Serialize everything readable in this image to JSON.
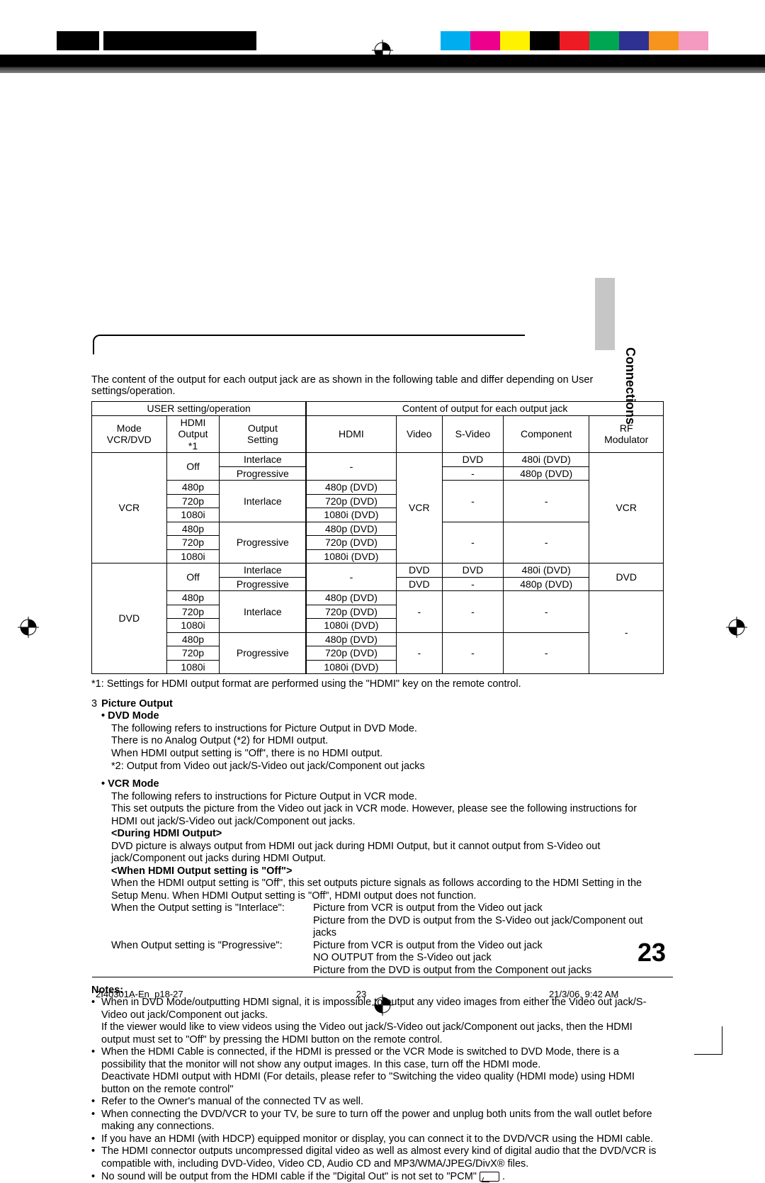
{
  "page": {
    "sideLabel": "Connections",
    "pageNumber": "23",
    "footerFile": "2I40301A-En_p18-27",
    "footerPage": "23",
    "footerDate": "21/3/06, 9:42 AM"
  },
  "intro": "The content of the output for each output jack are as shown in the following table and differ depending on User settings/operation.",
  "regColors": [
    "#00aeef",
    "#ec008c",
    "#fff200",
    "#000000",
    "#ed1c24",
    "#00a651",
    "#2e3192",
    "#f7941d",
    "#f49ac1"
  ],
  "table": {
    "headGroupLeft": "USER setting/operation",
    "headGroupRight": "Content of output for each output jack",
    "headers": {
      "mode": "Mode\nVCR/DVD",
      "hdmiOutput": "HDMI\nOutput\n*1",
      "outputSetting": "Output\nSetting",
      "hdmi": "HDMI",
      "video": "Video",
      "svideo": "S-Video",
      "component": "Component",
      "rf": "RF\nModulator"
    },
    "rows": [
      {
        "mode": "VCR",
        "hdmiOutput": "Off",
        "outputSetting": "Interlace",
        "hdmi": "-",
        "video": "VCR",
        "svideo": "DVD",
        "component": "480i (DVD)",
        "rf": "VCR"
      },
      {
        "mode": "",
        "hdmiOutput": "",
        "outputSetting": "Progressive",
        "hdmi": "",
        "video": "",
        "svideo": "-",
        "component": "480p (DVD)",
        "rf": ""
      },
      {
        "mode": "",
        "hdmiOutput": "480p",
        "outputSetting": "Interlace",
        "hdmi": "480p (DVD)",
        "video": "",
        "svideo": "-",
        "component": "-",
        "rf": ""
      },
      {
        "mode": "",
        "hdmiOutput": "720p",
        "outputSetting": "",
        "hdmi": "720p (DVD)",
        "video": "",
        "svideo": "",
        "component": "",
        "rf": ""
      },
      {
        "mode": "",
        "hdmiOutput": "1080i",
        "outputSetting": "",
        "hdmi": "1080i (DVD)",
        "video": "",
        "svideo": "",
        "component": "",
        "rf": ""
      },
      {
        "mode": "",
        "hdmiOutput": "480p",
        "outputSetting": "Progressive",
        "hdmi": "480p (DVD)",
        "video": "",
        "svideo": "-",
        "component": "-",
        "rf": ""
      },
      {
        "mode": "",
        "hdmiOutput": "720p",
        "outputSetting": "",
        "hdmi": "720p (DVD)",
        "video": "",
        "svideo": "",
        "component": "",
        "rf": ""
      },
      {
        "mode": "",
        "hdmiOutput": "1080i",
        "outputSetting": "",
        "hdmi": "1080i (DVD)",
        "video": "",
        "svideo": "",
        "component": "",
        "rf": ""
      },
      {
        "mode": "DVD",
        "hdmiOutput": "Off",
        "outputSetting": "Interlace",
        "hdmi": "-",
        "video": "DVD",
        "svideo": "DVD",
        "component": "480i (DVD)",
        "rf": "DVD"
      },
      {
        "mode": "",
        "hdmiOutput": "",
        "outputSetting": "Progressive",
        "hdmi": "",
        "video": "DVD",
        "svideo": "-",
        "component": "480p (DVD)",
        "rf": ""
      },
      {
        "mode": "",
        "hdmiOutput": "480p",
        "outputSetting": "Interlace",
        "hdmi": "480p (DVD)",
        "video": "-",
        "svideo": "-",
        "component": "-",
        "rf": "-"
      },
      {
        "mode": "",
        "hdmiOutput": "720p",
        "outputSetting": "",
        "hdmi": "720p (DVD)",
        "video": "",
        "svideo": "",
        "component": "",
        "rf": ""
      },
      {
        "mode": "",
        "hdmiOutput": "1080i",
        "outputSetting": "",
        "hdmi": "1080i (DVD)",
        "video": "",
        "svideo": "",
        "component": "",
        "rf": ""
      },
      {
        "mode": "",
        "hdmiOutput": "480p",
        "outputSetting": "Progressive",
        "hdmi": "480p (DVD)",
        "video": "-",
        "svideo": "-",
        "component": "-",
        "rf": ""
      },
      {
        "mode": "",
        "hdmiOutput": "720p",
        "outputSetting": "",
        "hdmi": "720p (DVD)",
        "video": "",
        "svideo": "",
        "component": "",
        "rf": ""
      },
      {
        "mode": "",
        "hdmiOutput": "1080i",
        "outputSetting": "",
        "hdmi": "1080i (DVD)",
        "video": "",
        "svideo": "",
        "component": "",
        "rf": ""
      }
    ]
  },
  "footnote1": "*1: Settings for HDMI output format are performed using the \"HDMI\" key on the remote control.",
  "pictureOutput": {
    "num": "3",
    "title": "Picture Output",
    "dvd": {
      "title": "• DVD Mode",
      "lines": [
        "The following refers to instructions for Picture Output in DVD Mode.",
        "There is no Analog Output (*2) for HDMI output.",
        "When HDMI output setting is \"Off\", there is no HDMI output.",
        "*2: Output from Video out jack/S-Video out jack/Component out jacks"
      ]
    },
    "vcr": {
      "title": "• VCR Mode",
      "lines": [
        "The following refers to instructions for Picture Output in VCR mode.",
        "This set outputs the picture from the Video out jack in VCR mode. However, please see the following instructions for HDMI out jack/S-Video out jack/Component out jacks."
      ],
      "during": "<During HDMI Output>",
      "duringText": "DVD picture is always output from HDMI out jack during HDMI Output, but it cannot output from S-Video out jack/Component out jacks during HDMI Output.",
      "whenOff": "<When HDMI Output setting is \"Off\">",
      "whenOffText": "When the HDMI output setting is \"Off\", this set outputs picture signals as follows according to the HDMI Setting in the Setup Menu. When HDMI Output setting is \"Off\", HDMI output does not function.",
      "interlaceLabel": "When the Output setting is \"Interlace\":",
      "interlaceLines": [
        "Picture from VCR is output from the Video out jack",
        "Picture from the DVD is output from the S-Video out jack/Component out jacks"
      ],
      "progressiveLabel": "When Output setting is \"Progressive\":",
      "progressiveLines": [
        "Picture from VCR is output from the Video out jack",
        "NO OUTPUT from the S-Video out jack",
        "Picture from the DVD is output from the Component out jacks"
      ]
    }
  },
  "notes": {
    "title": "Notes:",
    "items": [
      "When in DVD Mode/outputting HDMI signal, it is impossible to output any video images from either the Video out jack/S-Video out jack/Component out jacks.\nIf the viewer would like to view videos using the Video out jack/S-Video out jack/Component out jacks, then the HDMI output must set to \"Off\" by pressing the HDMI button on the remote control.",
      "When the HDMI Cable is connected, if the HDMI is pressed or the VCR Mode is switched to DVD Mode, there is a possibility that the monitor will not show any output images. In this case, turn off the HDMI mode.\nDeactivate HDMI output with HDMI (For details, please refer to \"Switching the video quality (HDMI mode) using HDMI button on the remote control\"",
      "Refer to the Owner's manual of the connected TV as well.",
      "When connecting the DVD/VCR to your TV, be sure to turn off the power and unplug both units from the wall outlet before making any connections.",
      "If you have an HDMI (with HDCP) equipped monitor or display, you can connect it to the DVD/VCR using the HDMI cable.",
      "The HDMI connector outputs uncompressed digital video as well as almost every kind of digital audio that the DVD/VCR is compatible with, including DVD-Video, Video CD, Audio CD and MP3/WMA/JPEG/DivX® files.",
      "No sound will be output from the HDMI cable if the \"Digital Out\" is not set to \"PCM\""
    ]
  }
}
